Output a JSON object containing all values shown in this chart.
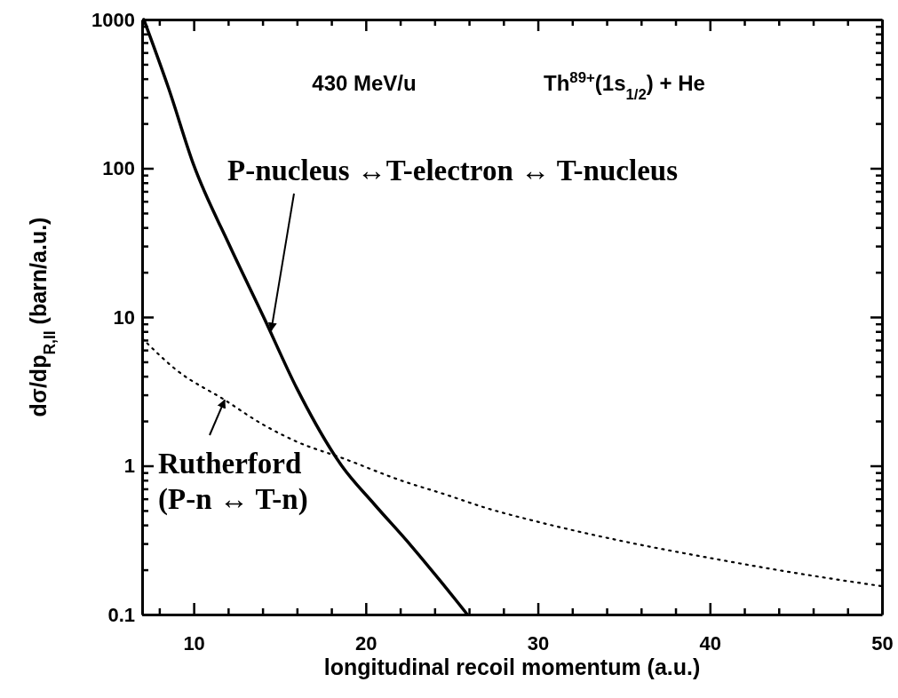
{
  "chart_data": {
    "type": "line",
    "xlabel": "longitudinal recoil momentum (a.u.)",
    "ylabel": "dσ/dp$_{R,II}$  (barn/a.u.)",
    "log": "y",
    "xlim": [
      7,
      50
    ],
    "ylim": [
      0.1,
      1000
    ],
    "xticks": [
      {
        "value": 8,
        "label": null
      },
      10,
      {
        "value": 12,
        "label": null
      },
      {
        "value": 14,
        "label": null
      },
      {
        "value": 16,
        "label": null
      },
      {
        "value": 18,
        "label": null
      },
      20,
      {
        "value": 22,
        "label": null
      },
      {
        "value": 24,
        "label": null
      },
      {
        "value": 26,
        "label": null
      },
      {
        "value": 28,
        "label": null
      },
      30,
      {
        "value": 32,
        "label": null
      },
      {
        "value": 34,
        "label": null
      },
      {
        "value": 36,
        "label": null
      },
      {
        "value": 38,
        "label": null
      },
      40,
      {
        "value": 42,
        "label": null
      },
      {
        "value": 44,
        "label": null
      },
      {
        "value": 46,
        "label": null
      },
      {
        "value": 48,
        "label": null
      },
      50
    ],
    "yticks": [
      0.1,
      {
        "value": 0.2,
        "label": null
      },
      {
        "value": 0.3,
        "label": null
      },
      {
        "value": 0.4,
        "label": null
      },
      {
        "value": 0.5,
        "label": null
      },
      {
        "value": 0.6,
        "label": null
      },
      {
        "value": 0.7,
        "label": null
      },
      {
        "value": 0.8,
        "label": null
      },
      {
        "value": 0.9,
        "label": null
      },
      1,
      {
        "value": 2,
        "label": null
      },
      {
        "value": 3,
        "label": null
      },
      {
        "value": 4,
        "label": null
      },
      {
        "value": 5,
        "label": null
      },
      {
        "value": 6,
        "label": null
      },
      {
        "value": 7,
        "label": null
      },
      {
        "value": 8,
        "label": null
      },
      {
        "value": 9,
        "label": null
      },
      10,
      {
        "value": 20,
        "label": null
      },
      {
        "value": 30,
        "label": null
      },
      {
        "value": 40,
        "label": null
      },
      {
        "value": 50,
        "label": null
      },
      {
        "value": 60,
        "label": null
      },
      {
        "value": 70,
        "label": null
      },
      {
        "value": 80,
        "label": null
      },
      {
        "value": 90,
        "label": null
      },
      100,
      {
        "value": 200,
        "label": null
      },
      {
        "value": 300,
        "label": null
      },
      {
        "value": 400,
        "label": null
      },
      {
        "value": 500,
        "label": null
      },
      {
        "value": 600,
        "label": null
      },
      {
        "value": 700,
        "label": null
      },
      {
        "value": 800,
        "label": null
      },
      {
        "value": 900,
        "label": null
      },
      1000
    ],
    "grid": false,
    "series": [
      {
        "color": "#000000",
        "line_style": "solid",
        "x": [
          7.1,
          8.55,
          10,
          12,
          14.06,
          16,
          18.6,
          20.5,
          22.6,
          24.3,
          25.9
        ],
        "values": [
          1000,
          342,
          105,
          31.7,
          10,
          3.3,
          1,
          0.55,
          0.293,
          0.17,
          0.1
        ]
      },
      {
        "color": "#000000",
        "line_style": "dotted",
        "x": [
          7,
          9,
          11.8,
          14,
          16,
          18.7,
          22,
          24.7,
          27,
          30,
          35,
          40,
          45,
          50
        ],
        "values": [
          7.2,
          4.4,
          2.77,
          1.9,
          1.45,
          1.12,
          0.8,
          0.637,
          0.52,
          0.42,
          0.31,
          0.24,
          0.19,
          0.155
        ]
      }
    ],
    "annotations": [
      "430 MeV/u",
      "Th$^{89+}$(1s$_{1/2}$) + He",
      {
        "text": "P-nucleus ↔T-electron ↔ T-nucleus",
        "x": 14.5,
        "y": 8.1
      },
      {
        "text": "Rutherford\n(P-n ↔ T-n)",
        "x": 11.8,
        "y": 2.77
      }
    ]
  }
}
